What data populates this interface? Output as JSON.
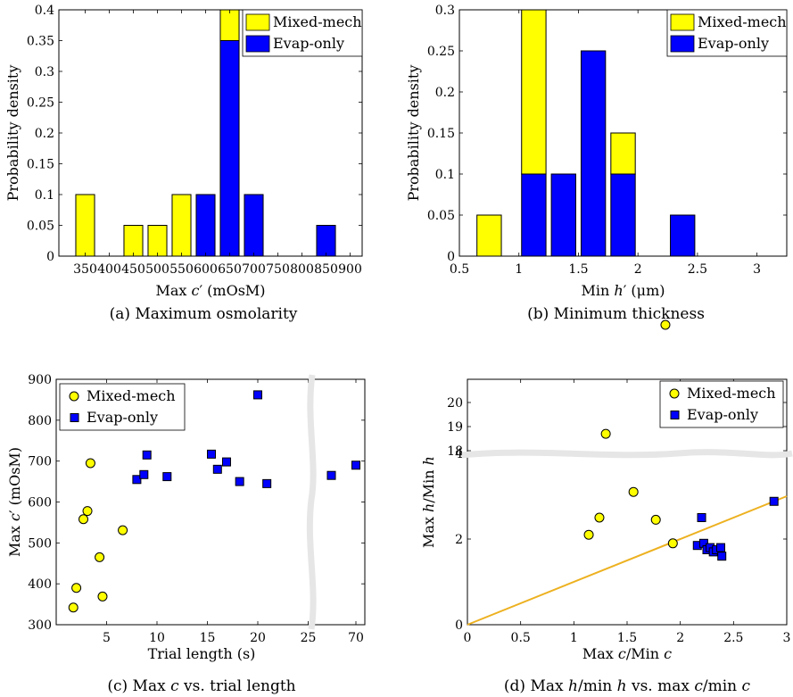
{
  "chart_data": [
    {
      "type": "bar",
      "stacked": true,
      "caption": "(a) Maximum osmolarity",
      "xlabel": "Max c′ (mOsM)",
      "ylabel": "Probability density",
      "categories": [
        "350",
        "400",
        "450",
        "500",
        "550",
        "600",
        "650",
        "700",
        "750",
        "800",
        "850",
        "900"
      ],
      "ylim": [
        0,
        0.4
      ],
      "yticks": [
        "0",
        "0.05",
        "0.1",
        "0.15",
        "0.2",
        "0.25",
        "0.3",
        "0.35",
        "0.4"
      ],
      "series": [
        {
          "name": "Evap-only",
          "color": "#0000ff",
          "values": [
            0,
            0,
            0,
            0,
            0,
            0.1,
            0.35,
            0.1,
            0,
            0,
            0.05,
            0
          ]
        },
        {
          "name": "Mixed-mech",
          "color": "#ffff00",
          "values": [
            0.1,
            0,
            0.05,
            0.05,
            0.1,
            0,
            0.05,
            0,
            0,
            0,
            0,
            0
          ]
        }
      ],
      "legend": "top-right"
    },
    {
      "type": "bar",
      "stacked": true,
      "caption": "(b) Minimum thickness",
      "xlabel": "Min h′ (μm)",
      "ylabel": "Probability density",
      "categories": [
        "0.75",
        "1.125",
        "1.375",
        "1.625",
        "1.875",
        "2.125",
        "2.375",
        "2.625",
        "2.875"
      ],
      "xlim": [
        0.5,
        3.25
      ],
      "xticks": [
        "0.5",
        "1",
        "1.5",
        "2",
        "2.5",
        "3"
      ],
      "ylim": [
        0,
        0.3
      ],
      "yticks": [
        "0",
        "0.05",
        "0.1",
        "0.15",
        "0.2",
        "0.25",
        "0.3"
      ],
      "series": [
        {
          "name": "Evap-only",
          "color": "#0000ff",
          "values": [
            0,
            0.1,
            0.1,
            0.25,
            0.1,
            0,
            0.05,
            0,
            0
          ]
        },
        {
          "name": "Mixed-mech",
          "color": "#ffff00",
          "values": [
            0.05,
            0.2,
            0,
            0,
            0.05,
            0,
            0,
            0,
            0
          ]
        }
      ],
      "legend": "top-right"
    },
    {
      "type": "scatter",
      "caption": "(c) Max c vs. trial length",
      "xlabel": "Trial length (s)",
      "ylabel": "Max c′ (mOsM)",
      "xticks": [
        "0",
        "5",
        "10",
        "15",
        "20",
        "25",
        "70"
      ],
      "ylim": [
        300,
        900
      ],
      "yticks": [
        "300",
        "400",
        "500",
        "600",
        "700",
        "800",
        "900"
      ],
      "axis_break": "x",
      "series": [
        {
          "name": "Mixed-mech",
          "marker": "circle",
          "color": "#ffff00",
          "points": [
            [
              1.7,
              342
            ],
            [
              2.0,
              390
            ],
            [
              2.7,
              558
            ],
            [
              3.1,
              578
            ],
            [
              3.4,
              695
            ],
            [
              4.3,
              465
            ],
            [
              4.6,
              369
            ],
            [
              6.6,
              531
            ]
          ]
        },
        {
          "name": "Evap-only",
          "marker": "square",
          "color": "#0000ff",
          "points": [
            [
              8.0,
              655
            ],
            [
              8.7,
              667
            ],
            [
              9.0,
              715
            ],
            [
              11.0,
              662
            ],
            [
              15.4,
              717
            ],
            [
              16.0,
              680
            ],
            [
              16.9,
              698
            ],
            [
              18.2,
              650
            ],
            [
              20.0,
              862
            ],
            [
              20.9,
              645
            ],
            [
              27.3,
              665
            ],
            [
              70,
              690
            ]
          ]
        }
      ],
      "legend": "top-left"
    },
    {
      "type": "scatter",
      "caption": "(d) Max h/min h vs. max c/min c",
      "xlabel": "Max c/Min c",
      "ylabel": "Max h/Min h",
      "xlim": [
        0,
        3
      ],
      "xticks": [
        "0",
        "0.5",
        "1",
        "1.5",
        "2",
        "2.5",
        "3"
      ],
      "yticks": [
        "0",
        "2",
        "4",
        "18",
        "19",
        "20"
      ],
      "axis_break": "y",
      "series": [
        {
          "name": "Mixed-mech",
          "marker": "circle",
          "color": "#ffff00",
          "points": [
            [
              1.14,
              2.1
            ],
            [
              1.24,
              2.5
            ],
            [
              1.3,
              18.7
            ],
            [
              1.56,
              3.1
            ],
            [
              1.77,
              2.45
            ],
            [
              1.86,
              7.0
            ],
            [
              1.93,
              1.9
            ]
          ]
        },
        {
          "name": "Evap-only",
          "marker": "square",
          "color": "#0000ff",
          "points": [
            [
              2.16,
              1.85
            ],
            [
              2.2,
              2.5
            ],
            [
              2.22,
              1.9
            ],
            [
              2.25,
              1.75
            ],
            [
              2.28,
              1.8
            ],
            [
              2.31,
              1.7
            ],
            [
              2.34,
              1.75
            ],
            [
              2.39,
              1.6
            ],
            [
              2.38,
              1.8
            ],
            [
              2.88,
              2.88
            ]
          ]
        }
      ],
      "reference_line": {
        "label": "y = x",
        "color": "#edb120"
      },
      "legend": "top-right"
    }
  ]
}
